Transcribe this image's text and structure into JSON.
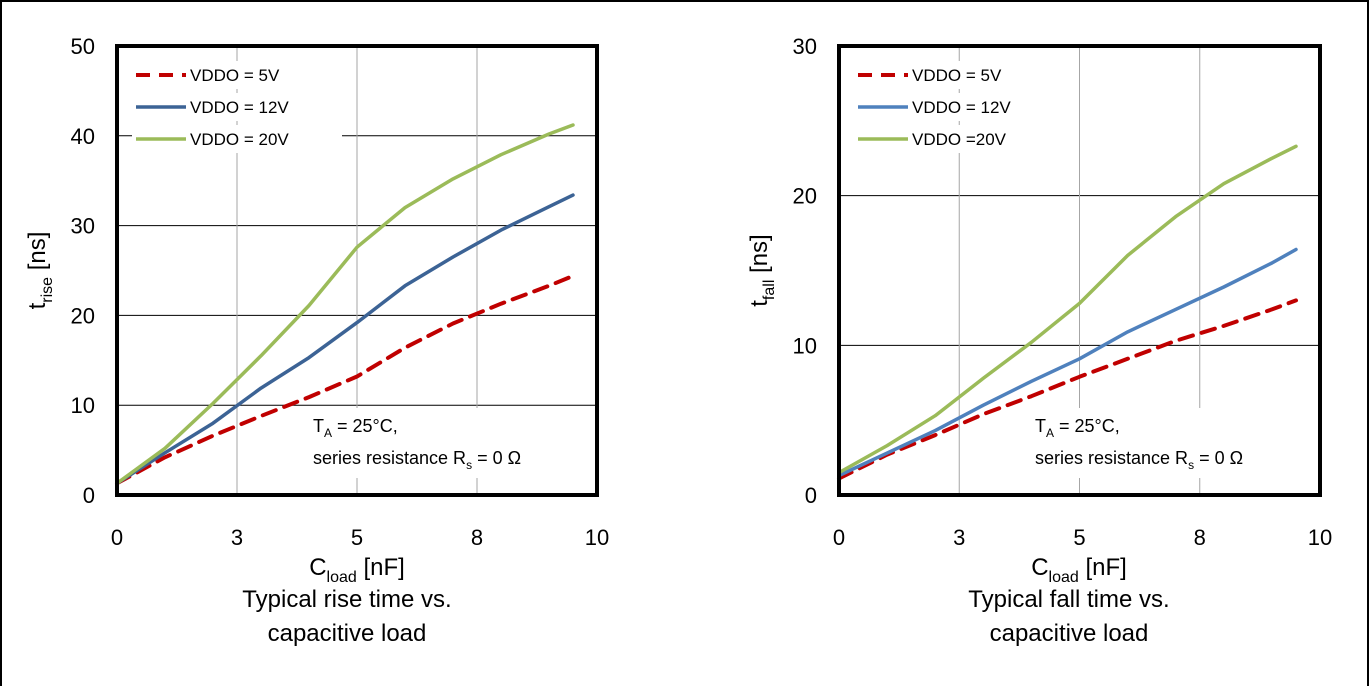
{
  "chart_data": [
    {
      "type": "line",
      "caption_lines": [
        "Typical rise time  vs.",
        "capacitive load"
      ],
      "ylabel": {
        "main": "t",
        "sub": "rise",
        "unit": " [ns]"
      },
      "xlabel": {
        "main": "C",
        "sub": "load",
        "unit": " [nF]"
      },
      "xlim": [
        0,
        10
      ],
      "ylim": [
        0,
        50
      ],
      "x_ticks": [
        {
          "value": 0,
          "label": "0"
        },
        {
          "value": 2.5,
          "label": "3"
        },
        {
          "value": 5,
          "label": "5"
        },
        {
          "value": 7.5,
          "label": "8"
        },
        {
          "value": 10,
          "label": "10"
        }
      ],
      "y_ticks": [
        0,
        10,
        20,
        30,
        40,
        50
      ],
      "grid": true,
      "legend_position": "top-left",
      "annotation": {
        "line1_main": "T",
        "line1_sub": "A",
        "line1_rest": " = 25°C,",
        "line2_main": "series  resistance  R",
        "line2_sub": "s",
        "line2_rest": " = 0 Ω"
      },
      "series": [
        {
          "name": "VDDO = 5V",
          "color": "#c00000",
          "dash": true,
          "x": [
            0,
            1,
            2,
            3,
            4,
            5,
            6,
            7,
            8,
            9,
            9.5
          ],
          "y": [
            1.3,
            4.2,
            6.6,
            8.8,
            10.9,
            13.2,
            16.4,
            19.1,
            21.3,
            23.3,
            24.4
          ]
        },
        {
          "name": "VDDO = 12V",
          "color": "#3c6395",
          "dash": false,
          "x": [
            0,
            1,
            2,
            3,
            4,
            5,
            6,
            7,
            8,
            9,
            9.5
          ],
          "y": [
            1.3,
            4.7,
            8.0,
            11.9,
            15.3,
            19.2,
            23.3,
            26.5,
            29.5,
            32.1,
            33.4
          ]
        },
        {
          "name": "VDDO = 20V",
          "color": "#9bbb59",
          "dash": false,
          "x": [
            0,
            1,
            2,
            3,
            4,
            5,
            6,
            7,
            8,
            9,
            9.5
          ],
          "y": [
            1.3,
            5.2,
            10.2,
            15.5,
            21.1,
            27.6,
            32.0,
            35.2,
            37.9,
            40.2,
            41.2
          ]
        }
      ]
    },
    {
      "type": "line",
      "caption_lines": [
        "Typical fall time  vs.",
        "capacitive load"
      ],
      "ylabel": {
        "main": "t",
        "sub": "fall",
        "unit": " [ns]"
      },
      "xlabel": {
        "main": "C",
        "sub": "load",
        "unit": " [nF]"
      },
      "xlim": [
        0,
        10
      ],
      "ylim": [
        0,
        30
      ],
      "x_ticks": [
        {
          "value": 0,
          "label": "0"
        },
        {
          "value": 2.5,
          "label": "3"
        },
        {
          "value": 5,
          "label": "5"
        },
        {
          "value": 7.5,
          "label": "8"
        },
        {
          "value": 10,
          "label": "10"
        }
      ],
      "y_ticks": [
        0,
        10,
        20,
        30
      ],
      "grid": true,
      "legend_position": "top-left",
      "annotation": {
        "line1_main": "T",
        "line1_sub": "A",
        "line1_rest": " = 25°C,",
        "line2_main": "series  resistance  R",
        "line2_sub": "s",
        "line2_rest": " = 0 Ω"
      },
      "series": [
        {
          "name": "VDDO = 5V",
          "color": "#c00000",
          "dash": true,
          "x": [
            0,
            1,
            2,
            3,
            4,
            5,
            6,
            7,
            8,
            9,
            9.5
          ],
          "y": [
            1.1,
            2.7,
            4.0,
            5.4,
            6.6,
            7.9,
            9.1,
            10.3,
            11.3,
            12.4,
            13.0
          ]
        },
        {
          "name": "VDDO = 12V",
          "color": "#4f81bd",
          "dash": false,
          "x": [
            0,
            1,
            2,
            3,
            4,
            5,
            6,
            7,
            8,
            9,
            9.5
          ],
          "y": [
            1.3,
            2.8,
            4.3,
            6.0,
            7.6,
            9.1,
            10.9,
            12.4,
            13.9,
            15.5,
            16.4
          ]
        },
        {
          "name": "VDDO =20V",
          "color": "#9bbb59",
          "dash": false,
          "x": [
            0,
            1,
            2,
            3,
            4,
            5,
            6,
            7,
            8,
            9,
            9.5
          ],
          "y": [
            1.5,
            3.3,
            5.3,
            7.8,
            10.2,
            12.8,
            16.0,
            18.6,
            20.8,
            22.5,
            23.3
          ]
        }
      ]
    }
  ]
}
